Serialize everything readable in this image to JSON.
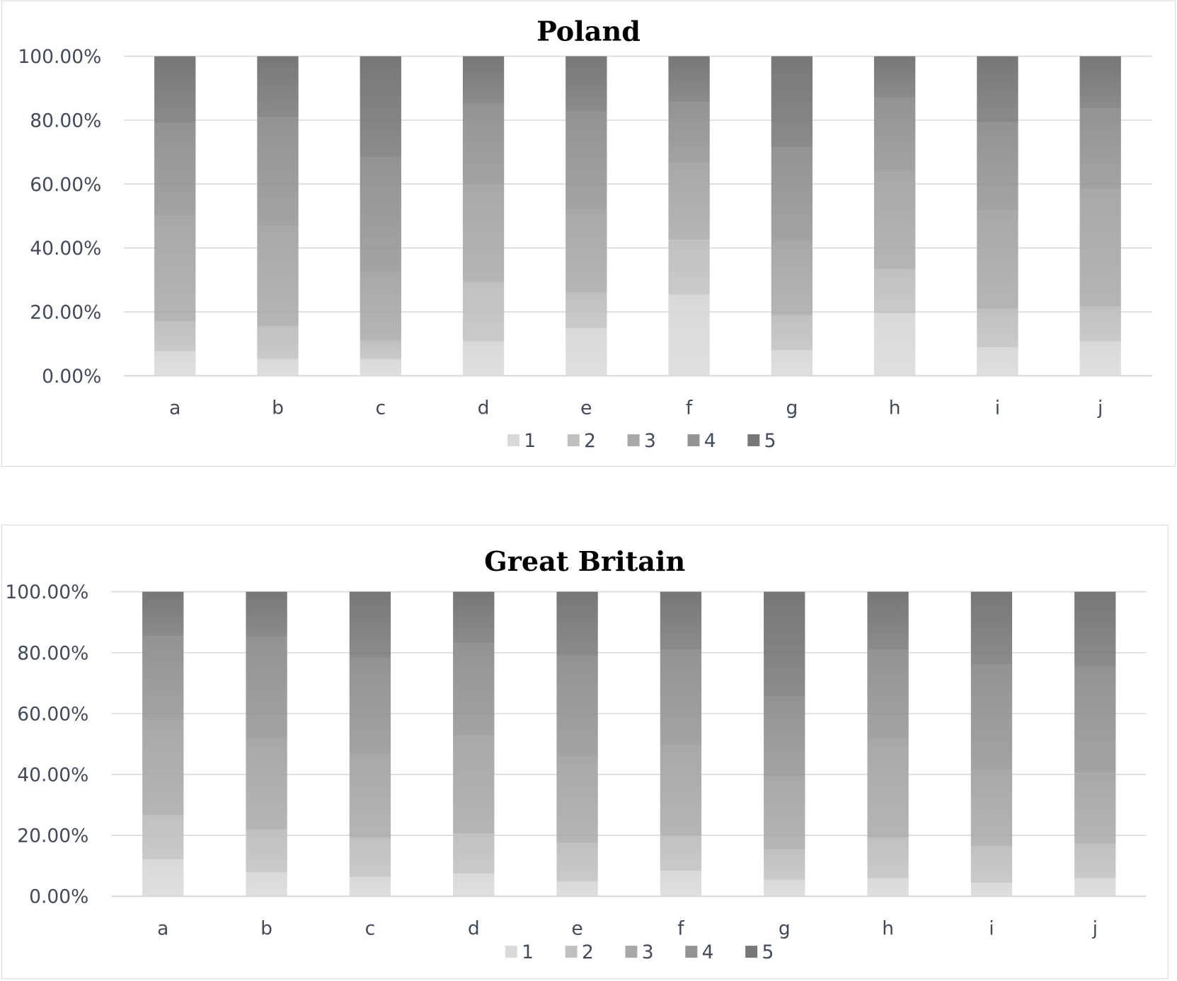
{
  "chart_data": [
    {
      "type": "bar",
      "stacked": true,
      "title": "Poland",
      "categories": [
        "a",
        "b",
        "c",
        "d",
        "e",
        "f",
        "g",
        "h",
        "i",
        "j"
      ],
      "ylim": [
        0,
        100
      ],
      "yticks": [
        "0.00%",
        "20.00%",
        "40.00%",
        "60.00%",
        "80.00%",
        "100.00%"
      ],
      "grid": true,
      "legend_position": "bottom",
      "series": [
        {
          "name": "1",
          "color": "#d9d9d9",
          "values": [
            7.7,
            5.2,
            5.2,
            10.8,
            15.0,
            25.4,
            8.0,
            19.5,
            8.9,
            10.8
          ]
        },
        {
          "name": "2",
          "color": "#c0c0c0",
          "values": [
            9.4,
            10.3,
            5.8,
            18.5,
            11.0,
            17.1,
            10.8,
            13.8,
            12.0,
            10.8
          ]
        },
        {
          "name": "3",
          "color": "#a8a8a8",
          "values": [
            32.9,
            31.4,
            21.4,
            30.6,
            25.9,
            23.9,
            23.2,
            30.5,
            30.7,
            36.9
          ]
        },
        {
          "name": "4",
          "color": "#939393",
          "values": [
            28.9,
            33.9,
            35.9,
            25.3,
            30.7,
            19.3,
            29.4,
            23.1,
            27.7,
            25.1
          ]
        },
        {
          "name": "5",
          "color": "#777777",
          "values": [
            21.1,
            19.2,
            31.7,
            14.8,
            17.4,
            14.3,
            28.6,
            13.1,
            20.7,
            16.4
          ]
        }
      ]
    },
    {
      "type": "bar",
      "stacked": true,
      "title": "Great Britain",
      "categories": [
        "a",
        "b",
        "c",
        "d",
        "e",
        "f",
        "g",
        "h",
        "i",
        "j"
      ],
      "ylim": [
        0,
        100
      ],
      "yticks": [
        "0.00%",
        "20.00%",
        "40.00%",
        "60.00%",
        "80.00%",
        "100.00%"
      ],
      "grid": true,
      "legend_position": "bottom",
      "series": [
        {
          "name": "1",
          "color": "#d9d9d9",
          "values": [
            12.1,
            7.9,
            6.4,
            7.4,
            4.9,
            8.4,
            5.4,
            5.9,
            4.4,
            5.9
          ]
        },
        {
          "name": "2",
          "color": "#c0c0c0",
          "values": [
            14.5,
            14.0,
            12.8,
            13.3,
            12.6,
            11.6,
            9.9,
            13.3,
            12.1,
            11.3
          ]
        },
        {
          "name": "3",
          "color": "#a8a8a8",
          "values": [
            31.0,
            29.6,
            27.4,
            32.0,
            28.1,
            29.5,
            23.9,
            32.3,
            24.9,
            23.2
          ]
        },
        {
          "name": "4",
          "color": "#939393",
          "values": [
            27.9,
            33.5,
            31.7,
            30.3,
            33.2,
            31.3,
            26.3,
            29.3,
            34.7,
            35.0
          ]
        },
        {
          "name": "5",
          "color": "#777777",
          "values": [
            14.5,
            15.0,
            21.7,
            17.0,
            21.2,
            19.2,
            34.5,
            19.2,
            23.9,
            24.6
          ]
        }
      ]
    }
  ]
}
